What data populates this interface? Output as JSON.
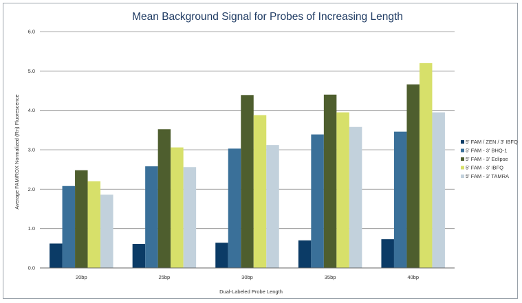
{
  "chart_data": {
    "type": "bar",
    "title": "Mean Background Signal for Probes of Increasing Length",
    "xlabel": "Dual-Labeled Probe Length",
    "ylabel": "Average FAM/ROX Normalized (Rn) Fluorescence",
    "categories": [
      "20bp",
      "25bp",
      "30bp",
      "35bp",
      "40bp"
    ],
    "ylim": [
      0,
      6
    ],
    "yticks": [
      "0.0",
      "1.0",
      "2.0",
      "3.0",
      "4.0",
      "5.0",
      "6.0"
    ],
    "grid": true,
    "legend_position": "right",
    "series": [
      {
        "name": "5' FAM / ZEN / 3' IBFQ",
        "color": "#0b3b66",
        "values": [
          0.62,
          0.61,
          0.64,
          0.7,
          0.73
        ]
      },
      {
        "name": "5' FAM - 3' BHQ-1",
        "color": "#3a7099",
        "values": [
          2.08,
          2.58,
          3.03,
          3.39,
          3.46
        ]
      },
      {
        "name": "5' FAM - 3' Eclipse",
        "color": "#4e5e2e",
        "values": [
          2.48,
          3.52,
          4.39,
          4.4,
          4.66
        ]
      },
      {
        "name": "5' FAM - 3' IBFQ",
        "color": "#d7e06a",
        "values": [
          2.2,
          3.06,
          3.88,
          3.95,
          5.2
        ]
      },
      {
        "name": "5' FAM - 3' TAMRA",
        "color": "#c2d1dc",
        "values": [
          1.86,
          2.56,
          3.12,
          3.58,
          3.95
        ]
      }
    ]
  }
}
